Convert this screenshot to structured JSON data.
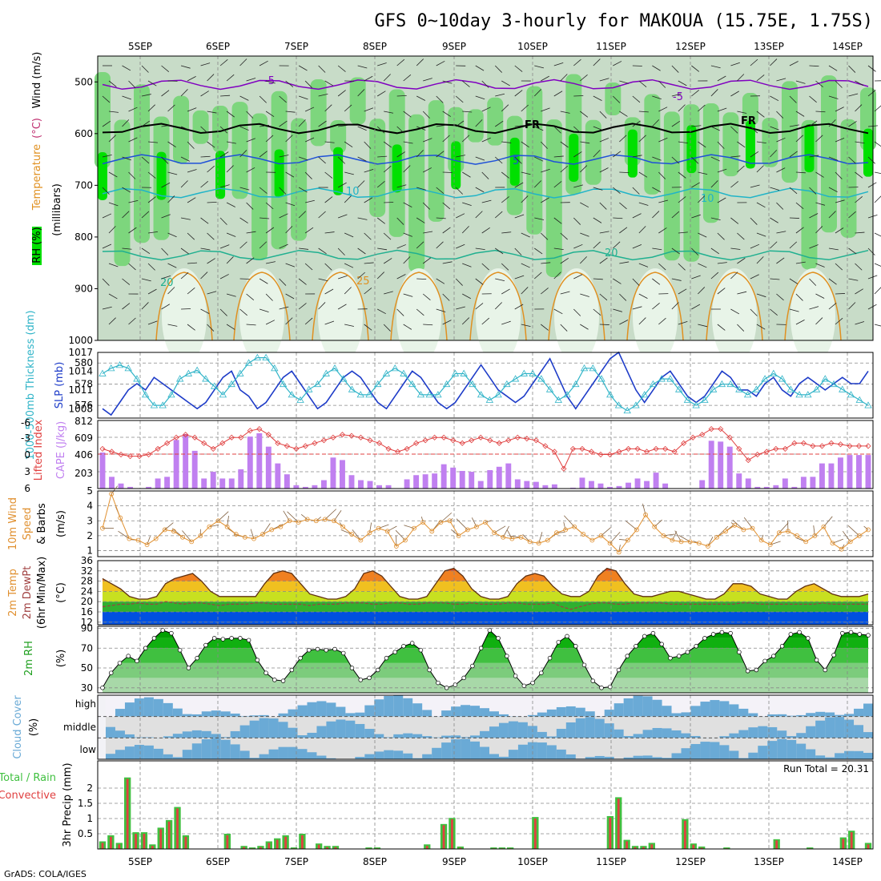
{
  "title": "GFS 0~10day 3-hourly for MAKOUA (15.75E, 1.75S)",
  "footer": "GrADS: COLA/IGES",
  "colors": {
    "rh_light": "#e8f4e8",
    "rh_mid": "#c8dcc8",
    "rh_green": "#7dd67d",
    "rh_bright": "#00e000",
    "temp_purple": "#8000c0",
    "temp_blue": "#1e50d8",
    "temp_cyan": "#20b4c8",
    "temp_orange": "#e09020",
    "slp": "#1e3cc8",
    "thickness": "#30b4c8",
    "cape": "#c080f0",
    "lifted": "#e04040",
    "wind": "#e09030",
    "barb": "#806040",
    "cloud": "#6aaad6",
    "rain_total": "#40c040",
    "rain_conv": "#e04040"
  },
  "chart_data": [
    {
      "type": "heatmap",
      "name": "vertical_profile",
      "x_dates": [
        "5SEP",
        "6SEP",
        "7SEP",
        "8SEP",
        "9SEP",
        "10SEP",
        "11SEP",
        "12SEP",
        "13SEP",
        "14SEP"
      ],
      "ylabel_parts": [
        "RH (%)",
        "Temperature",
        "(°C)",
        "Wind (m/s)",
        "(millibars)"
      ],
      "yticks": [
        500,
        600,
        700,
        800,
        900,
        1000
      ],
      "ylim": [
        450,
        1000
      ],
      "contour_labels": [
        "-5",
        "-5",
        "FR",
        "FR",
        "5",
        "10",
        "10",
        "20",
        "20",
        "25"
      ],
      "contours": [
        {
          "label": "-5",
          "level_hpa": 505
        },
        {
          "label": "FR",
          "level_hpa": 590
        },
        {
          "label": "5",
          "level_hpa": 650
        },
        {
          "label": "10",
          "level_hpa": 715
        },
        {
          "label": "20",
          "level_hpa": 835
        }
      ]
    },
    {
      "type": "line",
      "name": "slp_thickness",
      "ylabel_left": "1000-500mb Thickness (dm)",
      "ylabel_right": "SLP (mb)",
      "yticks_left": [
        576,
        578,
        580
      ],
      "yticks_right": [
        1008,
        1011,
        1014,
        1017
      ],
      "ylim_left": [
        574.8,
        581.0
      ],
      "ylim_right": [
        1006.5,
        1017.0
      ],
      "series": [
        {
          "name": "SLP",
          "values": [
            1008,
            1007,
            1009,
            1011,
            1012,
            1011,
            1013,
            1012,
            1011,
            1010,
            1009,
            1008,
            1009,
            1011,
            1013,
            1014,
            1011,
            1010,
            1008,
            1009,
            1011,
            1013,
            1014,
            1012,
            1010,
            1008,
            1009,
            1011,
            1013,
            1014,
            1013,
            1011,
            1009,
            1008,
            1010,
            1012,
            1014,
            1013,
            1011,
            1009,
            1008,
            1009,
            1011,
            1013,
            1015,
            1013,
            1011,
            1010,
            1009,
            1010,
            1012,
            1014,
            1016,
            1013,
            1010,
            1008,
            1010,
            1012,
            1014,
            1016,
            1017,
            1014,
            1011,
            1009,
            1011,
            1013,
            1014,
            1012,
            1010,
            1009,
            1010,
            1012,
            1014,
            1013,
            1011,
            1011,
            1010,
            1012,
            1013,
            1011,
            1010,
            1012,
            1013,
            1012,
            1011,
            1012,
            1013,
            1012,
            1012,
            1014
          ]
        },
        {
          "name": "Thickness",
          "values": [
            579,
            579.5,
            579.8,
            579.5,
            578.5,
            577,
            576,
            576,
            577,
            578.5,
            579,
            579.3,
            578.5,
            577.8,
            577,
            578,
            579,
            580,
            580.5,
            580.5,
            579.5,
            578,
            577,
            576.5,
            577.5,
            578,
            579,
            579.5,
            578.5,
            577.5,
            577,
            577,
            578,
            579,
            579.5,
            579,
            578,
            577,
            577,
            577,
            578,
            579,
            579,
            578,
            577,
            576.5,
            577,
            578,
            578.5,
            579,
            579,
            578.5,
            577.5,
            576.5,
            577,
            578,
            579.5,
            579.5,
            578.5,
            577,
            576,
            575.5,
            576,
            577,
            578,
            578.5,
            578.5,
            577.5,
            576.5,
            576,
            576.5,
            577.5,
            578,
            578,
            577.5,
            577,
            577.5,
            578.5,
            579,
            578.5,
            577.5,
            577,
            577,
            577.5,
            578.5,
            578,
            577.5,
            577,
            576.5,
            576
          ]
        }
      ]
    },
    {
      "type": "bar",
      "name": "cape_lifted_index",
      "ylabel_left": "Lifted Index",
      "ylabel_right": "CAPE (J/kg)",
      "yticks_left": [
        "-6",
        "-3",
        "0",
        "3",
        "6"
      ],
      "yticks_right": [
        "203",
        "406",
        "609",
        "812"
      ],
      "ylim_left": [
        -6,
        6
      ],
      "ylim_right": [
        0,
        812
      ],
      "series": [
        {
          "name": "CAPE",
          "values": [
            430,
            140,
            60,
            20,
            0,
            20,
            120,
            140,
            580,
            650,
            450,
            120,
            200,
            120,
            120,
            230,
            620,
            660,
            500,
            300,
            170,
            40,
            20,
            40,
            100,
            370,
            340,
            160,
            100,
            90,
            40,
            40,
            0,
            110,
            160,
            170,
            180,
            290,
            250,
            210,
            200,
            90,
            220,
            260,
            300,
            110,
            90,
            80,
            40,
            50,
            0,
            10,
            130,
            90,
            60,
            20,
            30,
            70,
            120,
            90,
            190,
            60,
            0,
            0,
            0,
            100,
            570,
            560,
            500,
            180,
            120,
            20,
            20,
            40,
            120,
            20,
            140,
            140,
            300,
            300,
            370,
            400,
            400,
            400
          ]
        },
        {
          "name": "Lifted Index",
          "values": [
            -1,
            -0.5,
            0,
            0.3,
            0.3,
            0,
            -1,
            -2,
            -3,
            -3.5,
            -3,
            -2,
            -1,
            -2,
            -3,
            -3,
            -4.2,
            -4.5,
            -3.5,
            -2,
            -1.5,
            -1,
            -1.5,
            -2,
            -2.5,
            -3,
            -3.5,
            -3.3,
            -3,
            -2.5,
            -2,
            -1,
            -0.5,
            -1,
            -2,
            -2.5,
            -3,
            -3,
            -2.5,
            -2,
            -2.5,
            -3,
            -2.5,
            -2,
            -2.5,
            -3,
            -2.8,
            -2.5,
            -1.5,
            -0.5,
            2.5,
            -1,
            -1,
            -0.5,
            0,
            0,
            -0.5,
            -1,
            -1,
            -0.5,
            -1,
            -1,
            -0.5,
            -2,
            -3,
            -3.5,
            -4.5,
            -4.5,
            -3,
            -1,
            1,
            0,
            -0.5,
            -1,
            -1,
            -2,
            -2,
            -1.5,
            -1.5,
            -2,
            -1.8,
            -1.5,
            -1.5,
            -1.5
          ]
        }
      ]
    },
    {
      "type": "line",
      "name": "wind_10m",
      "ylabel_parts": [
        "10m Wind",
        "Speed",
        "& Barbs",
        "(m/s)"
      ],
      "yticks": [
        1,
        2,
        3,
        4,
        5
      ],
      "ylim": [
        0.6,
        5
      ],
      "series": [
        {
          "name": "Speed",
          "values": [
            2.5,
            4.8,
            3.2,
            1.8,
            1.7,
            1.4,
            1.8,
            2.4,
            2.3,
            1.9,
            1.6,
            2.0,
            2.6,
            3.0,
            2.6,
            2.1,
            1.9,
            1.8,
            2.1,
            2.4,
            2.6,
            3.0,
            2.9,
            3.1,
            3.0,
            3.1,
            3.0,
            2.6,
            2.1,
            1.7,
            2.2,
            2.5,
            2.3,
            1.3,
            1.7,
            2.5,
            2.9,
            2.3,
            2.9,
            3.0,
            2.0,
            2.4,
            2.6,
            2.9,
            2.2,
            1.9,
            1.8,
            1.9,
            1.6,
            1.5,
            1.7,
            2.2,
            2.4,
            2.6,
            2.1,
            1.7,
            2.0,
            1.5,
            0.9,
            1.7,
            2.4,
            3.4,
            2.6,
            2.0,
            1.7,
            1.6,
            1.6,
            1.5,
            1.3,
            1.9,
            2.3,
            2.7,
            2.4,
            2.5,
            1.7,
            1.4,
            2.2,
            2.3,
            2.0,
            1.6,
            2.0,
            2.6,
            1.5,
            1.1,
            1.6,
            2.0,
            2.4
          ]
        }
      ]
    },
    {
      "type": "area",
      "name": "temp_2m",
      "ylabel_parts": [
        "2m Temp",
        "2m DewPt",
        "(6hr Min/Max)",
        "(°C)"
      ],
      "yticks": [
        12,
        16,
        20,
        24,
        28,
        32,
        36
      ],
      "ylim": [
        11,
        36
      ],
      "series": [
        {
          "name": "Temp",
          "values": [
            29,
            27,
            25,
            22,
            21,
            21,
            22,
            27,
            29,
            30,
            31,
            28,
            24,
            22,
            22,
            22,
            22,
            22,
            27,
            31,
            32,
            31,
            27,
            23,
            22,
            21,
            21,
            22,
            25,
            31,
            32,
            30,
            26,
            22,
            21,
            21,
            22,
            27,
            32,
            33,
            30,
            25,
            22,
            21,
            21,
            22,
            27,
            30,
            31,
            30,
            26,
            23,
            22,
            22,
            24,
            30,
            33,
            32,
            27,
            23,
            22,
            22,
            23,
            24,
            24,
            23,
            22,
            21,
            21,
            23,
            27,
            27,
            26,
            23,
            22,
            21,
            21,
            24,
            26,
            27,
            25,
            23,
            22,
            22,
            22,
            23
          ]
        },
        {
          "name": "DewPt",
          "values": [
            18,
            18.5,
            19,
            19,
            19.5,
            19,
            19,
            20,
            19.5,
            19,
            19.5,
            19.5,
            19,
            18.5,
            19,
            19,
            19,
            19.5,
            19.5,
            19,
            19,
            19,
            19,
            18.5,
            19,
            19,
            19,
            19.5,
            19.5,
            19.5,
            19,
            19,
            19.5,
            19.5,
            19,
            19,
            19.5,
            19.5,
            19.5,
            19,
            19,
            19.5,
            19,
            19,
            19,
            19.5,
            19.5,
            19,
            19,
            19,
            19.5,
            18,
            17,
            18,
            19,
            19.5,
            19.5,
            19,
            19,
            19.5,
            19.5,
            19.5,
            19.5,
            19,
            19,
            19,
            19,
            19,
            19,
            19,
            19,
            19.5,
            19.5,
            19,
            19,
            19,
            19,
            19,
            19,
            19,
            19.5,
            19,
            19,
            19,
            19,
            19
          ]
        }
      ]
    },
    {
      "type": "area",
      "name": "rh_2m",
      "ylabel_parts": [
        "2m RH",
        "(%)"
      ],
      "yticks": [
        30,
        50,
        70,
        90
      ],
      "ylim": [
        25,
        92
      ],
      "series": [
        {
          "name": "RH",
          "values": [
            30,
            45,
            55,
            62,
            57,
            70,
            80,
            88,
            85,
            68,
            50,
            60,
            73,
            80,
            79,
            80,
            80,
            78,
            58,
            45,
            38,
            37,
            48,
            60,
            68,
            69,
            68,
            69,
            65,
            50,
            38,
            40,
            48,
            60,
            66,
            72,
            75,
            68,
            48,
            35,
            30,
            33,
            40,
            52,
            70,
            88,
            80,
            62,
            42,
            32,
            35,
            45,
            60,
            76,
            82,
            72,
            53,
            37,
            30,
            31,
            48,
            62,
            72,
            82,
            85,
            74,
            60,
            62,
            66,
            72,
            80,
            84,
            86,
            85,
            66,
            47,
            48,
            57,
            62,
            72,
            84,
            86,
            80,
            58,
            48,
            63,
            85,
            86,
            84,
            83
          ]
        }
      ]
    },
    {
      "type": "heatmap",
      "name": "cloud_cover",
      "ylabel_parts": [
        "Cloud Cover",
        "(%)"
      ],
      "rows": [
        "high",
        "middle",
        "low"
      ]
    },
    {
      "type": "bar",
      "name": "precip_3hr",
      "ylabel_parts": [
        "Total / Rain",
        "Convective",
        "3hr Precip (mm)"
      ],
      "annotation": "Run Total = 20.31",
      "yticks": [
        "0.5",
        "1",
        "1.5",
        "2"
      ],
      "ylim": [
        0,
        2.5
      ],
      "series": [
        {
          "name": "Total",
          "values": [
            0.25,
            0.45,
            0.2,
            2.35,
            0.55,
            0.55,
            0.15,
            0.7,
            0.95,
            1.38,
            0.45,
            0,
            0,
            0,
            0,
            0.5,
            0,
            0.1,
            0.05,
            0.1,
            0.25,
            0.35,
            0.45,
            0.05,
            0.5,
            0,
            0.18,
            0.1,
            0.1,
            0,
            0,
            0,
            0.05,
            0.05,
            0,
            0,
            0,
            0,
            0,
            0.15,
            0,
            0.82,
            1.02,
            0.08,
            0,
            0,
            0,
            0.05,
            0.05,
            0.05,
            0,
            0,
            1.05,
            0,
            0,
            0,
            0,
            0,
            0,
            0,
            0,
            1.08,
            1.7,
            0.3,
            0.1,
            0.1,
            0.2,
            0,
            0,
            0,
            0.98,
            0.18,
            0.08,
            0,
            0,
            0.05,
            0,
            0,
            0,
            0,
            0,
            0.32,
            0,
            0,
            0,
            0.05,
            0,
            0,
            0,
            0.38,
            0.6,
            0,
            0.2
          ]
        },
        {
          "name": "Convective",
          "values": [
            0.2,
            0.4,
            0.15,
            2.3,
            0.5,
            0.5,
            0.1,
            0.65,
            0.9,
            1.33,
            0.4,
            0,
            0,
            0,
            0,
            0.45,
            0,
            0.06,
            0.02,
            0.06,
            0.2,
            0.3,
            0.4,
            0.02,
            0.45,
            0,
            0.14,
            0.06,
            0.06,
            0,
            0,
            0,
            0.02,
            0.02,
            0,
            0,
            0,
            0,
            0,
            0.1,
            0,
            0.78,
            0.98,
            0.04,
            0,
            0,
            0,
            0.02,
            0.02,
            0.02,
            0,
            0,
            1.0,
            0,
            0,
            0,
            0,
            0,
            0,
            0,
            0,
            1.03,
            1.65,
            0.25,
            0.06,
            0.06,
            0.15,
            0,
            0,
            0,
            0.93,
            0.14,
            0.04,
            0,
            0,
            0.02,
            0,
            0,
            0,
            0,
            0,
            0.28,
            0,
            0,
            0,
            0.02,
            0,
            0,
            0,
            0.33,
            0.55,
            0,
            0.15
          ]
        }
      ]
    }
  ]
}
